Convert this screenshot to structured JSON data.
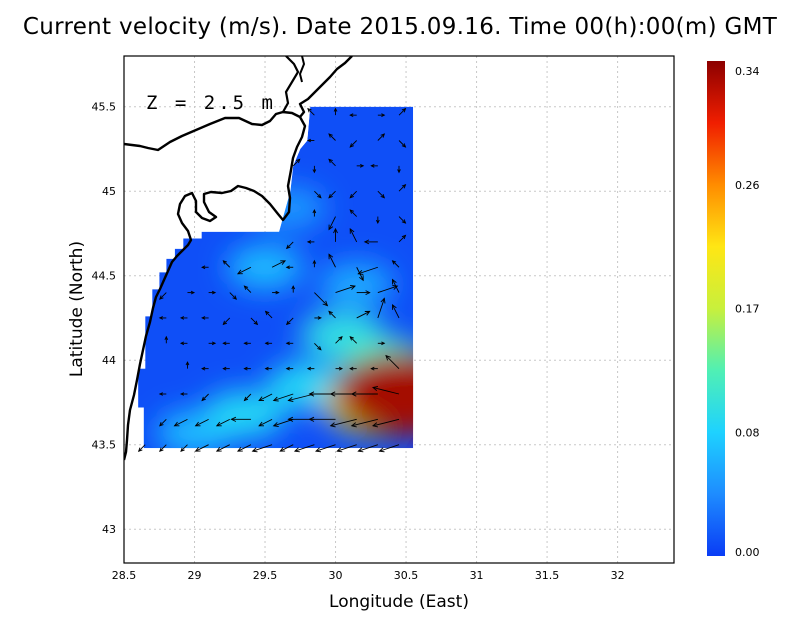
{
  "title": "Current velocity (m/s). Date 2015.09.16. Time 00(h):00(m) GMT",
  "depth_label": "Z = 2.5 m",
  "chart_data": {
    "type": "heatmap",
    "xlabel": "Longitude (East)",
    "ylabel": "Latitude (North)",
    "xlim": [
      28.5,
      32.4
    ],
    "ylim": [
      42.8,
      45.8
    ],
    "x_ticks": [
      "28.5",
      "29",
      "29.5",
      "30",
      "30.5",
      "31",
      "31.5",
      "32"
    ],
    "y_ticks": [
      "43",
      "43.5",
      "44",
      "44.5",
      "45",
      "45.5"
    ],
    "grid": true,
    "colorbar": {
      "min": 0.0,
      "max": 0.34,
      "tick_labels": [
        "0.00",
        "0.08",
        "0.17",
        "0.26",
        "0.34"
      ],
      "colors": [
        "#0a3cf5",
        "#1e8cff",
        "#1ed2ff",
        "#50f0b4",
        "#c8f03c",
        "#ffe614",
        "#ff8c00",
        "#f01e00",
        "#8c0000"
      ]
    },
    "speed_hotspots": [
      {
        "lon": 30.48,
        "lat": 43.8,
        "speed": 0.33
      },
      {
        "lon": 30.3,
        "lat": 43.75,
        "speed": 0.2
      },
      {
        "lon": 30.35,
        "lat": 43.98,
        "speed": 0.12
      },
      {
        "lon": 30.05,
        "lat": 44.15,
        "speed": 0.1
      },
      {
        "lon": 29.8,
        "lat": 43.85,
        "speed": 0.09
      },
      {
        "lon": 29.35,
        "lat": 43.68,
        "speed": 0.09
      },
      {
        "lon": 29.0,
        "lat": 43.57,
        "speed": 0.07
      },
      {
        "lon": 29.5,
        "lat": 44.55,
        "speed": 0.07
      },
      {
        "lon": 29.68,
        "lat": 44.9,
        "speed": 0.05
      },
      {
        "lon": 30.15,
        "lat": 44.45,
        "speed": 0.06
      }
    ],
    "current_vectors": [
      {
        "lon": 29.85,
        "lat": 45.45,
        "u": -0.01,
        "v": 0.01
      },
      {
        "lon": 30.0,
        "lat": 45.45,
        "u": 0.0,
        "v": 0.01
      },
      {
        "lon": 30.15,
        "lat": 45.45,
        "u": -0.01,
        "v": 0.0
      },
      {
        "lon": 30.3,
        "lat": 45.45,
        "u": 0.01,
        "v": 0.0
      },
      {
        "lon": 30.45,
        "lat": 45.45,
        "u": 0.01,
        "v": 0.01
      },
      {
        "lon": 29.85,
        "lat": 45.3,
        "u": -0.01,
        "v": 0.0
      },
      {
        "lon": 30.0,
        "lat": 45.3,
        "u": -0.01,
        "v": 0.01
      },
      {
        "lon": 30.15,
        "lat": 45.3,
        "u": -0.01,
        "v": -0.01
      },
      {
        "lon": 30.3,
        "lat": 45.3,
        "u": 0.01,
        "v": 0.01
      },
      {
        "lon": 30.45,
        "lat": 45.3,
        "u": 0.01,
        "v": -0.01
      },
      {
        "lon": 29.7,
        "lat": 45.15,
        "u": 0.01,
        "v": 0.01
      },
      {
        "lon": 29.85,
        "lat": 45.15,
        "u": 0.0,
        "v": -0.01
      },
      {
        "lon": 30.0,
        "lat": 45.15,
        "u": -0.01,
        "v": 0.01
      },
      {
        "lon": 30.15,
        "lat": 45.15,
        "u": 0.01,
        "v": 0.0
      },
      {
        "lon": 30.3,
        "lat": 45.15,
        "u": -0.01,
        "v": 0.0
      },
      {
        "lon": 30.45,
        "lat": 45.15,
        "u": 0.0,
        "v": -0.01
      },
      {
        "lon": 29.85,
        "lat": 45.0,
        "u": 0.01,
        "v": -0.01
      },
      {
        "lon": 30.0,
        "lat": 45.0,
        "u": -0.01,
        "v": -0.01
      },
      {
        "lon": 30.15,
        "lat": 45.0,
        "u": -0.01,
        "v": -0.01
      },
      {
        "lon": 30.3,
        "lat": 45.0,
        "u": 0.01,
        "v": -0.01
      },
      {
        "lon": 30.45,
        "lat": 45.0,
        "u": 0.01,
        "v": 0.01
      },
      {
        "lon": 29.85,
        "lat": 44.85,
        "u": 0.0,
        "v": 0.01
      },
      {
        "lon": 30.0,
        "lat": 44.85,
        "u": -0.01,
        "v": -0.02
      },
      {
        "lon": 30.15,
        "lat": 44.85,
        "u": -0.01,
        "v": 0.01
      },
      {
        "lon": 30.3,
        "lat": 44.85,
        "u": 0.0,
        "v": -0.01
      },
      {
        "lon": 30.45,
        "lat": 44.85,
        "u": 0.01,
        "v": -0.01
      },
      {
        "lon": 29.7,
        "lat": 44.7,
        "u": -0.01,
        "v": -0.01
      },
      {
        "lon": 29.85,
        "lat": 44.7,
        "u": -0.01,
        "v": 0.0
      },
      {
        "lon": 30.0,
        "lat": 44.7,
        "u": 0.0,
        "v": 0.02
      },
      {
        "lon": 30.15,
        "lat": 44.7,
        "u": -0.01,
        "v": 0.02
      },
      {
        "lon": 30.3,
        "lat": 44.7,
        "u": -0.02,
        "v": 0.0
      },
      {
        "lon": 30.45,
        "lat": 44.7,
        "u": 0.01,
        "v": 0.01
      },
      {
        "lon": 29.1,
        "lat": 44.55,
        "u": -0.01,
        "v": 0.0
      },
      {
        "lon": 29.25,
        "lat": 44.55,
        "u": -0.01,
        "v": 0.01
      },
      {
        "lon": 29.4,
        "lat": 44.55,
        "u": -0.02,
        "v": -0.01
      },
      {
        "lon": 29.55,
        "lat": 44.55,
        "u": 0.02,
        "v": 0.01
      },
      {
        "lon": 29.7,
        "lat": 44.55,
        "u": -0.01,
        "v": 0.0
      },
      {
        "lon": 29.85,
        "lat": 44.55,
        "u": 0.0,
        "v": 0.01
      },
      {
        "lon": 30.0,
        "lat": 44.55,
        "u": -0.01,
        "v": 0.02
      },
      {
        "lon": 30.15,
        "lat": 44.55,
        "u": 0.01,
        "v": -0.02
      },
      {
        "lon": 30.3,
        "lat": 44.55,
        "u": -0.03,
        "v": -0.01
      },
      {
        "lon": 30.45,
        "lat": 44.55,
        "u": -0.01,
        "v": 0.01
      },
      {
        "lon": 28.8,
        "lat": 44.4,
        "u": -0.01,
        "v": -0.01
      },
      {
        "lon": 28.95,
        "lat": 44.4,
        "u": 0.01,
        "v": 0.0
      },
      {
        "lon": 29.1,
        "lat": 44.4,
        "u": 0.01,
        "v": 0.0
      },
      {
        "lon": 29.25,
        "lat": 44.4,
        "u": 0.01,
        "v": -0.01
      },
      {
        "lon": 29.4,
        "lat": 44.4,
        "u": -0.01,
        "v": 0.01
      },
      {
        "lon": 29.55,
        "lat": 44.4,
        "u": 0.01,
        "v": 0.0
      },
      {
        "lon": 29.7,
        "lat": 44.4,
        "u": 0.0,
        "v": 0.01
      },
      {
        "lon": 29.85,
        "lat": 44.4,
        "u": 0.02,
        "v": -0.02
      },
      {
        "lon": 30.0,
        "lat": 44.4,
        "u": 0.03,
        "v": 0.01
      },
      {
        "lon": 30.15,
        "lat": 44.4,
        "u": 0.02,
        "v": 0.0
      },
      {
        "lon": 30.3,
        "lat": 44.4,
        "u": 0.03,
        "v": 0.01
      },
      {
        "lon": 30.45,
        "lat": 44.4,
        "u": -0.01,
        "v": 0.02
      },
      {
        "lon": 28.8,
        "lat": 44.25,
        "u": -0.01,
        "v": 0.0
      },
      {
        "lon": 28.95,
        "lat": 44.25,
        "u": -0.01,
        "v": 0.0
      },
      {
        "lon": 29.1,
        "lat": 44.25,
        "u": -0.01,
        "v": 0.0
      },
      {
        "lon": 29.25,
        "lat": 44.25,
        "u": -0.01,
        "v": -0.01
      },
      {
        "lon": 29.4,
        "lat": 44.25,
        "u": 0.01,
        "v": -0.01
      },
      {
        "lon": 29.55,
        "lat": 44.25,
        "u": -0.01,
        "v": 0.01
      },
      {
        "lon": 29.7,
        "lat": 44.25,
        "u": -0.01,
        "v": -0.01
      },
      {
        "lon": 29.85,
        "lat": 44.25,
        "u": 0.01,
        "v": 0.0
      },
      {
        "lon": 30.0,
        "lat": 44.25,
        "u": -0.01,
        "v": 0.01
      },
      {
        "lon": 30.15,
        "lat": 44.25,
        "u": 0.02,
        "v": 0.01
      },
      {
        "lon": 30.3,
        "lat": 44.25,
        "u": 0.01,
        "v": 0.03
      },
      {
        "lon": 30.45,
        "lat": 44.25,
        "u": -0.01,
        "v": 0.02
      },
      {
        "lon": 28.8,
        "lat": 44.1,
        "u": 0.0,
        "v": 0.01
      },
      {
        "lon": 28.95,
        "lat": 44.1,
        "u": -0.01,
        "v": 0.0
      },
      {
        "lon": 29.1,
        "lat": 44.1,
        "u": 0.01,
        "v": 0.0
      },
      {
        "lon": 29.25,
        "lat": 44.1,
        "u": -0.01,
        "v": 0.0
      },
      {
        "lon": 29.4,
        "lat": 44.1,
        "u": -0.01,
        "v": 0.0
      },
      {
        "lon": 29.55,
        "lat": 44.1,
        "u": -0.01,
        "v": 0.0
      },
      {
        "lon": 29.7,
        "lat": 44.1,
        "u": -0.01,
        "v": 0.0
      },
      {
        "lon": 29.85,
        "lat": 44.1,
        "u": 0.01,
        "v": -0.01
      },
      {
        "lon": 30.0,
        "lat": 44.1,
        "u": 0.01,
        "v": 0.01
      },
      {
        "lon": 30.15,
        "lat": 44.1,
        "u": -0.01,
        "v": 0.01
      },
      {
        "lon": 30.3,
        "lat": 44.1,
        "u": 0.01,
        "v": 0.0
      },
      {
        "lon": 30.45,
        "lat": 44.1,
        "u": 0.0,
        "v": 0.0
      },
      {
        "lon": 28.8,
        "lat": 43.95,
        "u": 0.0,
        "v": 0.0
      },
      {
        "lon": 28.95,
        "lat": 43.95,
        "u": 0.0,
        "v": 0.01
      },
      {
        "lon": 29.1,
        "lat": 43.95,
        "u": -0.01,
        "v": 0.0
      },
      {
        "lon": 29.25,
        "lat": 43.95,
        "u": -0.01,
        "v": 0.0
      },
      {
        "lon": 29.4,
        "lat": 43.95,
        "u": -0.01,
        "v": 0.0
      },
      {
        "lon": 29.55,
        "lat": 43.95,
        "u": -0.01,
        "v": 0.0
      },
      {
        "lon": 29.7,
        "lat": 43.95,
        "u": -0.01,
        "v": 0.0
      },
      {
        "lon": 29.85,
        "lat": 43.95,
        "u": -0.01,
        "v": 0.0
      },
      {
        "lon": 30.0,
        "lat": 43.95,
        "u": 0.01,
        "v": 0.0
      },
      {
        "lon": 30.15,
        "lat": 43.95,
        "u": -0.01,
        "v": 0.0
      },
      {
        "lon": 30.3,
        "lat": 43.95,
        "u": -0.01,
        "v": 0.0
      },
      {
        "lon": 30.45,
        "lat": 43.95,
        "u": -0.02,
        "v": 0.02
      },
      {
        "lon": 28.8,
        "lat": 43.8,
        "u": -0.01,
        "v": 0.0
      },
      {
        "lon": 28.95,
        "lat": 43.8,
        "u": -0.01,
        "v": 0.0
      },
      {
        "lon": 29.1,
        "lat": 43.8,
        "u": -0.01,
        "v": -0.01
      },
      {
        "lon": 29.25,
        "lat": 43.8,
        "u": 0.0,
        "v": 0.0
      },
      {
        "lon": 29.4,
        "lat": 43.8,
        "u": -0.01,
        "v": -0.01
      },
      {
        "lon": 29.55,
        "lat": 43.8,
        "u": -0.02,
        "v": -0.01
      },
      {
        "lon": 29.7,
        "lat": 43.8,
        "u": -0.03,
        "v": -0.01
      },
      {
        "lon": 29.85,
        "lat": 43.8,
        "u": -0.04,
        "v": -0.01
      },
      {
        "lon": 30.0,
        "lat": 43.8,
        "u": -0.04,
        "v": 0.0
      },
      {
        "lon": 30.15,
        "lat": 43.8,
        "u": -0.04,
        "v": 0.0
      },
      {
        "lon": 30.3,
        "lat": 43.8,
        "u": -0.04,
        "v": 0.0
      },
      {
        "lon": 30.45,
        "lat": 43.8,
        "u": -0.04,
        "v": 0.01
      },
      {
        "lon": 28.8,
        "lat": 43.65,
        "u": -0.01,
        "v": -0.01
      },
      {
        "lon": 28.95,
        "lat": 43.65,
        "u": -0.02,
        "v": -0.01
      },
      {
        "lon": 29.1,
        "lat": 43.65,
        "u": -0.02,
        "v": -0.01
      },
      {
        "lon": 29.25,
        "lat": 43.65,
        "u": -0.02,
        "v": -0.01
      },
      {
        "lon": 29.4,
        "lat": 43.65,
        "u": -0.03,
        "v": 0.0
      },
      {
        "lon": 29.55,
        "lat": 43.65,
        "u": -0.02,
        "v": -0.01
      },
      {
        "lon": 29.7,
        "lat": 43.65,
        "u": -0.03,
        "v": -0.01
      },
      {
        "lon": 29.85,
        "lat": 43.65,
        "u": -0.04,
        "v": 0.0
      },
      {
        "lon": 30.0,
        "lat": 43.65,
        "u": -0.04,
        "v": 0.0
      },
      {
        "lon": 30.15,
        "lat": 43.65,
        "u": -0.04,
        "v": -0.01
      },
      {
        "lon": 30.3,
        "lat": 43.65,
        "u": -0.04,
        "v": -0.01
      },
      {
        "lon": 30.45,
        "lat": 43.65,
        "u": -0.04,
        "v": -0.01
      },
      {
        "lon": 28.65,
        "lat": 43.5,
        "u": -0.01,
        "v": -0.01
      },
      {
        "lon": 28.8,
        "lat": 43.5,
        "u": -0.01,
        "v": -0.01
      },
      {
        "lon": 28.95,
        "lat": 43.5,
        "u": -0.01,
        "v": -0.01
      },
      {
        "lon": 29.1,
        "lat": 43.5,
        "u": -0.02,
        "v": -0.01
      },
      {
        "lon": 29.25,
        "lat": 43.5,
        "u": -0.02,
        "v": -0.01
      },
      {
        "lon": 29.4,
        "lat": 43.5,
        "u": -0.02,
        "v": -0.01
      },
      {
        "lon": 29.55,
        "lat": 43.5,
        "u": -0.03,
        "v": -0.01
      },
      {
        "lon": 29.7,
        "lat": 43.5,
        "u": -0.02,
        "v": -0.01
      },
      {
        "lon": 29.85,
        "lat": 43.5,
        "u": -0.03,
        "v": -0.01
      },
      {
        "lon": 30.0,
        "lat": 43.5,
        "u": -0.03,
        "v": -0.01
      },
      {
        "lon": 30.15,
        "lat": 43.5,
        "u": -0.03,
        "v": -0.01
      },
      {
        "lon": 30.3,
        "lat": 43.5,
        "u": -0.03,
        "v": -0.01
      },
      {
        "lon": 30.45,
        "lat": 43.5,
        "u": -0.03,
        "v": -0.01
      }
    ]
  }
}
